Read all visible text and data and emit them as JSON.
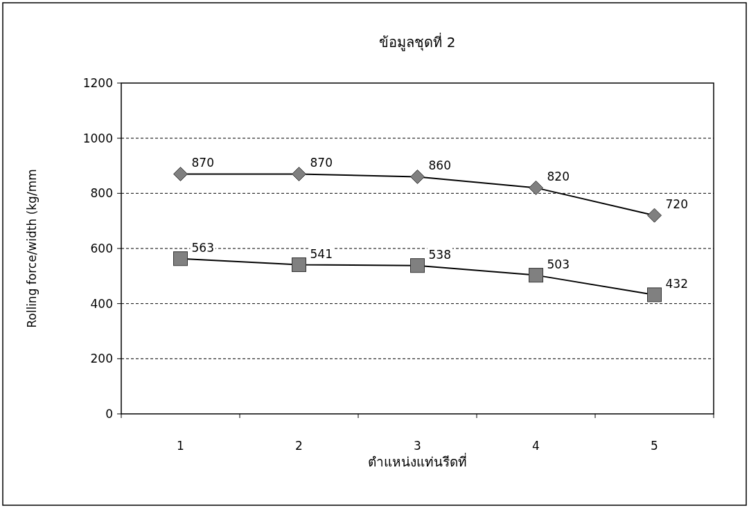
{
  "chart_data": {
    "type": "line",
    "title": "ข้อมูลชุดที่ 2",
    "xlabel": "ตำแหน่งแท่นรีดที่",
    "ylabel": "Rolling force/width (kg/mm",
    "categories": [
      "1",
      "2",
      "3",
      "4",
      "5"
    ],
    "series": [
      {
        "color": "#808080",
        "marker": "diamond",
        "values": [
          870,
          870,
          860,
          820,
          720
        ]
      },
      {
        "color": "#808080",
        "marker": "square",
        "values": [
          563,
          541,
          538,
          503,
          432
        ]
      }
    ],
    "ylim": [
      0,
      1200
    ],
    "yticks": [
      0,
      200,
      400,
      600,
      800,
      1000,
      1200
    ],
    "grid": "y",
    "data_labels": true,
    "line_style": "solid"
  }
}
